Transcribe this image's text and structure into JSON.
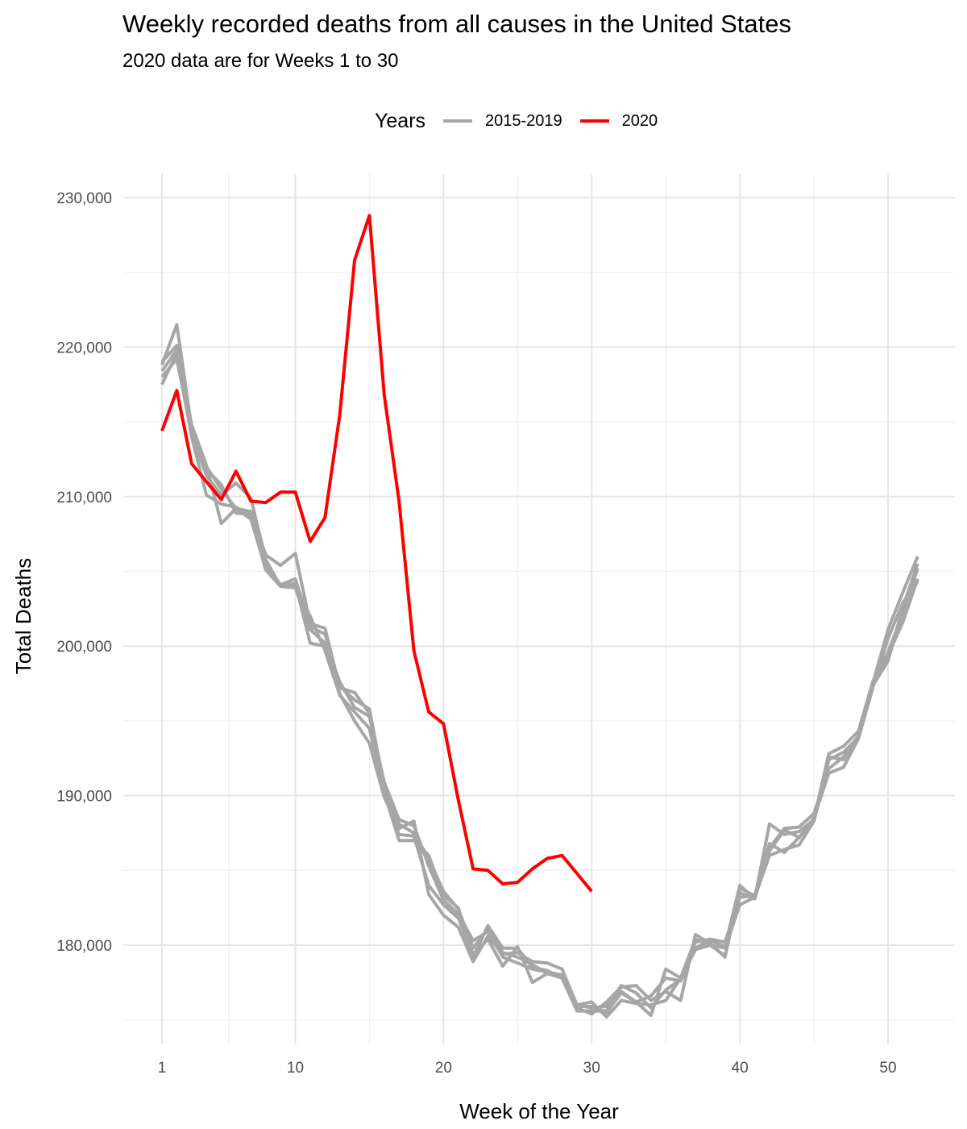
{
  "chart_data": {
    "type": "line",
    "title": "Weekly recorded deaths from all causes in the United States",
    "subtitle": "2020 data are for Weeks 1 to 30",
    "xlabel": "Week of the Year",
    "ylabel": "Total Deaths",
    "xlim": [
      1,
      53
    ],
    "ylim": [
      175000,
      230000
    ],
    "x_ticks": [
      1,
      10,
      20,
      30,
      40,
      50
    ],
    "y_ticks": [
      180000,
      190000,
      200000,
      210000,
      220000,
      230000
    ],
    "x_tick_labels": [
      "1",
      "10",
      "20",
      "30",
      "40",
      "50"
    ],
    "y_tick_labels": [
      "180,000",
      "190,000",
      "200,000",
      "210,000",
      "220,000",
      "230,000"
    ],
    "grid": true,
    "legend": {
      "title": "Years",
      "position": "top",
      "entries": [
        {
          "label": "2015-2019",
          "color": "#A6A6A6"
        },
        {
          "label": "2020",
          "color": "#FF0000"
        }
      ]
    },
    "series": [
      {
        "name": "2015-2019",
        "group": "2015-2019",
        "color": "#A6A6A6",
        "values": [
          218800,
          221500,
          214600,
          212000,
          210500,
          209200,
          209000,
          206100,
          205400,
          206200,
          201500,
          201200,
          197200,
          196900,
          195500,
          190200,
          187000,
          187000,
          186000,
          183300,
          182500,
          179200,
          181300,
          179800,
          179800,
          178500,
          178300,
          177800,
          175900,
          175900,
          175500,
          176800,
          176200,
          175300,
          178400,
          177800,
          180400,
          180000,
          179300,
          183500,
          183100,
          188100,
          187400,
          187600,
          188400,
          192800,
          193300,
          194300,
          197700,
          199400,
          201600,
          204500
        ]
      },
      {
        "name": "2015-2019",
        "group": "2015-2019",
        "color": "#A6A6A6",
        "values": [
          218400,
          219800,
          214500,
          211800,
          210800,
          208900,
          208800,
          205500,
          204100,
          204500,
          201300,
          200800,
          197300,
          196400,
          195800,
          190600,
          188100,
          187500,
          185800,
          183600,
          182400,
          179800,
          181100,
          179500,
          179200,
          178700,
          178100,
          177900,
          176000,
          175800,
          175900,
          177300,
          176800,
          175800,
          177000,
          177700,
          180200,
          180400,
          180200,
          183200,
          183300,
          186800,
          186200,
          187200,
          188300,
          192600,
          192400,
          193900,
          197500,
          199600,
          202200,
          205200
        ]
      },
      {
        "name": "2015-2019",
        "group": "2015-2019",
        "color": "#A6A6A6",
        "values": [
          218000,
          219200,
          214200,
          211400,
          210100,
          210900,
          209900,
          205800,
          204000,
          203900,
          201100,
          200200,
          197600,
          195900,
          195300,
          190900,
          188400,
          188000,
          185300,
          183000,
          182100,
          180300,
          180900,
          179200,
          178800,
          178400,
          178200,
          178000,
          175800,
          175400,
          176200,
          177200,
          177300,
          176300,
          176900,
          176300,
          180700,
          180100,
          179200,
          183800,
          183300,
          186500,
          187800,
          187900,
          188800,
          191800,
          192600,
          194000,
          197400,
          199000,
          202600,
          205500
        ]
      },
      {
        "name": "2015-2019",
        "group": "2015-2019",
        "color": "#A6A6A6",
        "values": [
          217500,
          219600,
          214000,
          210100,
          209500,
          209300,
          208700,
          205100,
          204000,
          204100,
          202000,
          199700,
          196700,
          195600,
          194500,
          190100,
          187400,
          187300,
          184000,
          182700,
          181800,
          179400,
          180400,
          178600,
          179900,
          177500,
          178100,
          177800,
          175600,
          175600,
          175600,
          176900,
          176200,
          176600,
          177800,
          177600,
          179800,
          180300,
          179900,
          184000,
          183100,
          186300,
          187700,
          187200,
          188500,
          191500,
          191900,
          193800,
          197300,
          200500,
          202900,
          204300
        ]
      },
      {
        "name": "2015-2019",
        "group": "2015-2019",
        "color": "#A6A6A6",
        "values": [
          219000,
          220100,
          214800,
          212100,
          208200,
          209200,
          208500,
          205200,
          204000,
          204200,
          200200,
          200000,
          196800,
          195000,
          193500,
          189900,
          187800,
          188300,
          183400,
          182000,
          181200,
          178900,
          180600,
          179400,
          179500,
          178900,
          178800,
          178400,
          176000,
          176200,
          175200,
          176300,
          176100,
          176000,
          176300,
          177800,
          179700,
          180000,
          179800,
          182700,
          183200,
          186000,
          186400,
          186700,
          188300,
          192400,
          192900,
          193900,
          197600,
          201100,
          203600,
          206000
        ]
      },
      {
        "name": "2020",
        "group": "2020",
        "color": "#FF0000",
        "values": [
          214400,
          217100,
          212200,
          211000,
          209800,
          211700,
          209700,
          209600,
          210300,
          210300,
          207000,
          208600,
          215500,
          225800,
          228800,
          216800,
          209700,
          199700,
          195600,
          194800,
          189700,
          185100,
          185000,
          184100,
          184200,
          185100,
          185800,
          186000,
          184800,
          183600
        ]
      }
    ]
  }
}
